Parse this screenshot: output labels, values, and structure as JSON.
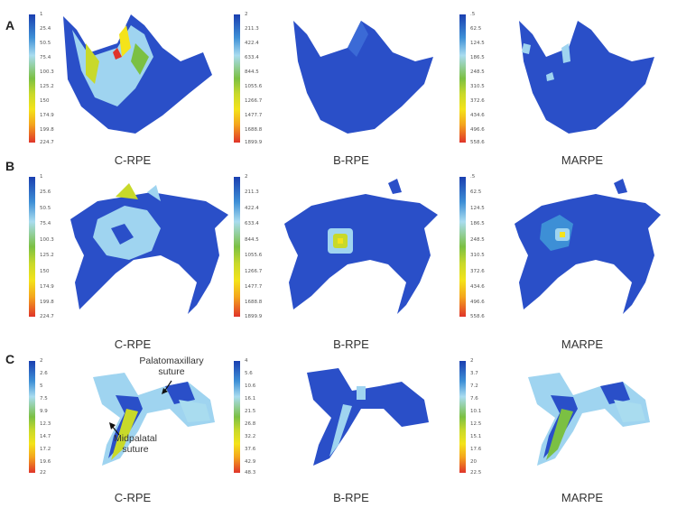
{
  "rows": [
    {
      "label": "A",
      "panels": [
        {
          "caption": "C-RPE",
          "scale": [
            "1",
            "25.4",
            "50.5",
            "75.4",
            "100.3",
            "125.2",
            "150",
            "174.9",
            "199.8",
            "224.7"
          ]
        },
        {
          "caption": "B-RPE",
          "scale": [
            "2",
            "211.3",
            "422.4",
            "633.4",
            "844.5",
            "1055.6",
            "1266.7",
            "1477.7",
            "1688.8",
            "1899.9"
          ]
        },
        {
          "caption": "MARPE",
          "scale": [
            ".5",
            "62.5",
            "124.5",
            "186.5",
            "248.5",
            "310.5",
            "372.6",
            "434.6",
            "496.6",
            "558.6"
          ]
        }
      ]
    },
    {
      "label": "B",
      "panels": [
        {
          "caption": "C-RPE",
          "scale": [
            "1",
            "25.6",
            "50.5",
            "75.4",
            "100.3",
            "125.2",
            "150",
            "174.9",
            "199.8",
            "224.7"
          ]
        },
        {
          "caption": "B-RPE",
          "scale": [
            "2",
            "211.3",
            "422.4",
            "633.4",
            "844.5",
            "1055.6",
            "1266.7",
            "1477.7",
            "1688.8",
            "1899.9"
          ]
        },
        {
          "caption": "MARPE",
          "scale": [
            ".5",
            "62.5",
            "124.5",
            "186.5",
            "248.5",
            "310.5",
            "372.6",
            "434.6",
            "496.6",
            "558.6"
          ]
        }
      ]
    },
    {
      "label": "C",
      "panels": [
        {
          "caption": "C-RPE",
          "scale": [
            "2",
            "2.6",
            "5",
            "7.5",
            "9.9",
            "12.3",
            "14.7",
            "17.2",
            "19.6",
            "22"
          ]
        },
        {
          "caption": "B-RPE",
          "scale": [
            "4",
            "5.6",
            "10.6",
            "16.1",
            "21.5",
            "26.8",
            "32.2",
            "37.6",
            "42.9",
            "48.3"
          ]
        },
        {
          "caption": "MARPE",
          "scale": [
            "2",
            "3.7",
            "7.2",
            "7.6",
            "10.1",
            "12.5",
            "15.1",
            "17.6",
            "20",
            "22.5"
          ]
        }
      ]
    }
  ],
  "annotations": {
    "palatomaxillary": "Palatomaxillary suture",
    "midpalatal": "Midpalatal suture"
  },
  "colors": {
    "scale_gradient": [
      "#1a3fb0",
      "#3d8fd6",
      "#a9dcef",
      "#7bc043",
      "#c8d92a",
      "#f4e31a",
      "#f4a41d",
      "#e0342a"
    ],
    "bone": "#2a4fc8",
    "bone_light": "#9fd4f0"
  }
}
